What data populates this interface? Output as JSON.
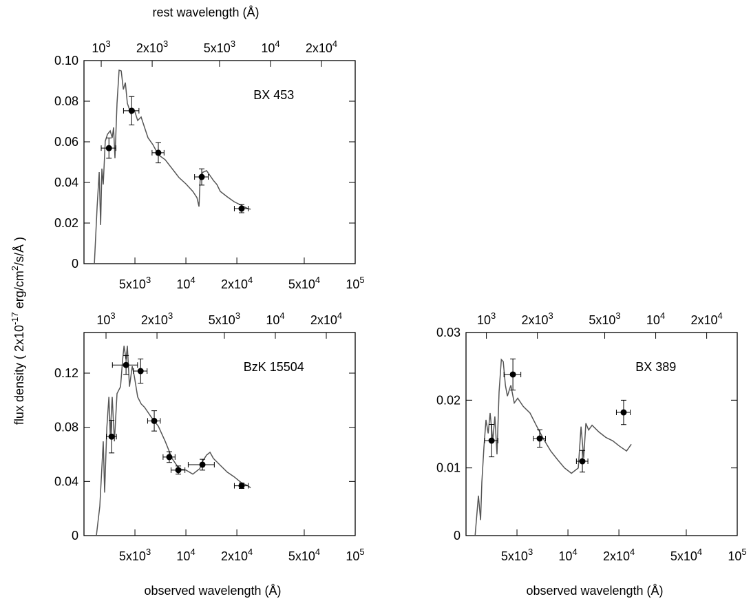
{
  "chart_data": [
    {
      "type": "line",
      "title": "BX 453",
      "x2label": "rest wavelength (Å)",
      "xlog": true,
      "xlim": [
        2500,
        100000
      ],
      "xticks": [
        {
          "value": 5000,
          "label": "5x10",
          "sup": "3"
        },
        {
          "value": 10000,
          "label": "10",
          "sup": "4"
        },
        {
          "value": 20000,
          "label": "2x10",
          "sup": "4"
        },
        {
          "value": 50000,
          "label": "5x10",
          "sup": "4"
        },
        {
          "value": 100000,
          "label": "10",
          "sup": "5"
        }
      ],
      "x2lim": [
        791,
        31646
      ],
      "x2ticks": [
        {
          "value": 1000,
          "label": "10",
          "sup": "3"
        },
        {
          "value": 2000,
          "label": "2x10",
          "sup": "3"
        },
        {
          "value": 5000,
          "label": "5x10",
          "sup": "3"
        },
        {
          "value": 10000,
          "label": "10",
          "sup": "4"
        },
        {
          "value": 20000,
          "label": "2x10",
          "sup": "4"
        }
      ],
      "ylim": [
        0,
        0.1
      ],
      "yticks": [
        0,
        0.02,
        0.04,
        0.06,
        0.08,
        {
          "value": 0.1,
          "label": "0.10"
        }
      ],
      "model": {
        "color": "#555555",
        "x": [
          2880,
          2990,
          3074,
          3135,
          3190,
          3250,
          3340,
          3440,
          3570,
          3670,
          3740,
          3810,
          3920,
          4030,
          4150,
          4270,
          4390,
          4510,
          4730,
          4960,
          5190,
          5440,
          5700,
          5970,
          6380,
          6880,
          7550,
          8290,
          9100,
          10000,
          10990,
          11620,
          11950,
          12170,
          12640,
          13250,
          13880,
          14540,
          15240,
          15960,
          17540,
          19270,
          21150,
          23230,
          24110
        ],
        "values": [
          0,
          0.0281,
          0.0451,
          0.019,
          0.0468,
          0.039,
          0.0603,
          0.0637,
          0.0654,
          0.062,
          0.0671,
          0.0519,
          0.079,
          0.0953,
          0.0949,
          0.0858,
          0.0892,
          0.079,
          0.0739,
          0.0756,
          0.0705,
          0.0722,
          0.0671,
          0.062,
          0.0586,
          0.0536,
          0.0512,
          0.0468,
          0.0424,
          0.0393,
          0.0356,
          0.0325,
          0.0281,
          0.0434,
          0.0451,
          0.0458,
          0.0434,
          0.041,
          0.039,
          0.0356,
          0.0329,
          0.0305,
          0.0288,
          0.0271,
          0.0268
        ]
      },
      "points": {
        "color": "#000000",
        "x": [
          3510,
          4780,
          6870,
          12400,
          21330
        ],
        "xerr": [
          350,
          500,
          560,
          1150,
          2000
        ],
        "values": [
          0.0569,
          0.0753,
          0.0546,
          0.0427,
          0.0271
        ],
        "yerr": [
          0.005,
          0.007,
          0.005,
          0.004,
          0.002
        ]
      }
    },
    {
      "type": "line",
      "title": "BzK 15504",
      "xlabel": "observed wavelength (Å)",
      "xlog": true,
      "ylabel": [
        "flux density ( 2x10",
        "-17",
        " erg/cm",
        "2",
        "/s/Å )"
      ],
      "xlim": [
        2500,
        100000
      ],
      "xticks": [
        {
          "value": 5000,
          "label": "5x10",
          "sup": "3"
        },
        {
          "value": 10000,
          "label": "10",
          "sup": "4"
        },
        {
          "value": 20000,
          "label": "2x10",
          "sup": "4"
        },
        {
          "value": 50000,
          "label": "5x10",
          "sup": "4"
        },
        {
          "value": 100000,
          "label": "10",
          "sup": "5"
        }
      ],
      "x2lim": [
        741,
        29630
      ],
      "x2ticks": [
        {
          "value": 1000,
          "label": "10",
          "sup": "3"
        },
        {
          "value": 2000,
          "label": "2x10",
          "sup": "3"
        },
        {
          "value": 5000,
          "label": "5x10",
          "sup": "3"
        },
        {
          "value": 10000,
          "label": "10",
          "sup": "4"
        },
        {
          "value": 20000,
          "label": "2x10",
          "sup": "4"
        }
      ],
      "ylim": [
        0,
        0.15
      ],
      "yticks": [
        0,
        0.04,
        0.08,
        0.12
      ],
      "model": {
        "color": "#555555",
        "x": [
          2960,
          3100,
          3250,
          3310,
          3410,
          3510,
          3570,
          3670,
          3780,
          3920,
          4110,
          4230,
          4310,
          4430,
          4510,
          4640,
          4820,
          4960,
          5190,
          5440,
          5700,
          6270,
          6880,
          7550,
          8290,
          9100,
          10000,
          10990,
          12060,
          12640,
          13250,
          13880,
          14540,
          15960,
          17540,
          19270,
          21150,
          23230,
          24110
        ],
        "values": [
          0,
          0.0217,
          0.0696,
          0.0318,
          0.0797,
          0.1024,
          0.0746,
          0.1024,
          0.0696,
          0.1049,
          0.11,
          0.1301,
          0.1402,
          0.1301,
          0.1402,
          0.11,
          0.1251,
          0.1175,
          0.1024,
          0.0973,
          0.0948,
          0.0872,
          0.0807,
          0.0696,
          0.057,
          0.0494,
          0.0484,
          0.0454,
          0.0494,
          0.0555,
          0.0595,
          0.0615,
          0.057,
          0.0519,
          0.0469,
          0.0434,
          0.0393,
          0.0368,
          0.0353
        ]
      },
      "points": {
        "color": "#000000",
        "x": [
          3640,
          4430,
          5400,
          6500,
          7980,
          9020,
          12520,
          21330
        ],
        "xerr": [
          250,
          750,
          500,
          560,
          650,
          850,
          2200,
          2000
        ],
        "values": [
          0.0731,
          0.126,
          0.1215,
          0.0847,
          0.058,
          0.0484,
          0.0524,
          0.0368
        ],
        "yerr": [
          0.012,
          0.007,
          0.009,
          0.0075,
          0.004,
          0.003,
          0.004,
          0.002
        ]
      }
    },
    {
      "type": "line",
      "title": "BX 389",
      "xlabel": "observed wavelength (Å)",
      "xlog": true,
      "xlim": [
        2500,
        100000
      ],
      "xticks": [
        {
          "value": 5000,
          "label": "5x10",
          "sup": "3"
        },
        {
          "value": 10000,
          "label": "10",
          "sup": "4"
        },
        {
          "value": 20000,
          "label": "2x10",
          "sup": "4"
        },
        {
          "value": 50000,
          "label": "5x10",
          "sup": "4"
        },
        {
          "value": 100000,
          "label": "10",
          "sup": "5"
        }
      ],
      "x2lim": [
        758,
        30303
      ],
      "x2ticks": [
        {
          "value": 1000,
          "label": "10",
          "sup": "3"
        },
        {
          "value": 2000,
          "label": "2x10",
          "sup": "3"
        },
        {
          "value": 5000,
          "label": "5x10",
          "sup": "3"
        },
        {
          "value": 10000,
          "label": "10",
          "sup": "4"
        },
        {
          "value": 20000,
          "label": "2x10",
          "sup": "4"
        }
      ],
      "ylim": [
        0,
        0.03
      ],
      "yticks": [
        0,
        0.01,
        0.02,
        0.03
      ],
      "model": {
        "color": "#555555",
        "x": [
          2830,
          2960,
          3050,
          3100,
          3190,
          3280,
          3380,
          3470,
          3600,
          3700,
          3810,
          3920,
          4040,
          4150,
          4270,
          4390,
          4600,
          4820,
          5050,
          5440,
          5970,
          6560,
          7200,
          7910,
          8690,
          9550,
          10480,
          11510,
          11950,
          12400,
          12760,
          13250,
          13880,
          15240,
          16740,
          18380,
          20190,
          22180,
          23670
        ],
        "values": [
          0,
          0.0059,
          0.0023,
          0.0079,
          0.013,
          0.0171,
          0.0151,
          0.0181,
          0.014,
          0.0176,
          0.012,
          0.0212,
          0.026,
          0.0257,
          0.0222,
          0.0206,
          0.0222,
          0.0196,
          0.0203,
          0.0191,
          0.0181,
          0.0161,
          0.0142,
          0.0125,
          0.0112,
          0.01,
          0.0092,
          0.01,
          0.0161,
          0.0115,
          0.0166,
          0.0156,
          0.0163,
          0.0153,
          0.0145,
          0.014,
          0.0132,
          0.0125,
          0.0135
        ]
      },
      "points": {
        "color": "#000000",
        "x": [
          3540,
          4730,
          6810,
          12170,
          21330
        ],
        "xerr": [
          320,
          540,
          560,
          950,
          2000
        ],
        "values": [
          0.01403,
          0.0238,
          0.01434,
          0.01098,
          0.0182
        ],
        "yerr": [
          0.0024,
          0.0023,
          0.0013,
          0.0016,
          0.0018
        ]
      }
    }
  ]
}
